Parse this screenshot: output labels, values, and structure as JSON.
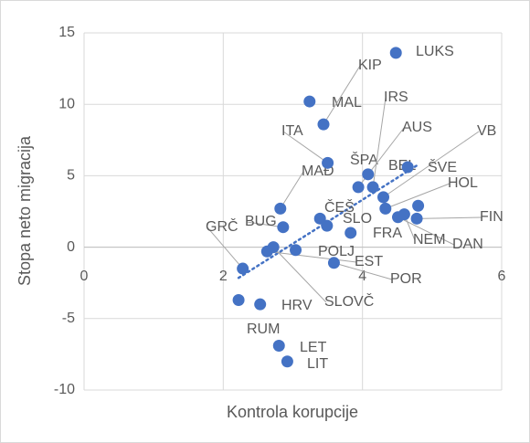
{
  "chart_data": {
    "type": "scatter",
    "xlabel": "Kontrola korupcije",
    "ylabel": "Stopa neto migracija",
    "xlim": [
      0,
      6
    ],
    "xticks": [
      0,
      2,
      4,
      6
    ],
    "ylim": [
      -10,
      15
    ],
    "yticks": [
      -10,
      -5,
      0,
      5,
      10,
      15
    ],
    "grid": true,
    "color": "#4472c4",
    "trendline": true,
    "labels": [
      "LUKS",
      "MAL",
      "KIP",
      "ITA",
      "ŠPA",
      "IRS",
      "AUS",
      "BEL",
      "VB",
      "ŠVE",
      "HOL",
      "FIN",
      "DAN",
      "NEM",
      "FRA",
      "SLO",
      "ČEŠ",
      "MAĐ",
      "BUG",
      "GRČ",
      "POLJ",
      "EST",
      "POR",
      "SLOVČ",
      "HRV",
      "RUM",
      "LET",
      "LIT"
    ],
    "x": [
      4.48,
      3.24,
      3.44,
      3.5,
      4.08,
      4.15,
      3.94,
      4.65,
      4.3,
      4.8,
      4.33,
      4.78,
      4.51,
      4.6,
      3.83,
      3.49,
      3.39,
      2.82,
      2.86,
      2.28,
      3.04,
      2.63,
      3.59,
      2.72,
      2.53,
      2.22,
      2.8,
      2.92
    ],
    "y": [
      13.6,
      10.2,
      8.6,
      5.9,
      5.1,
      4.2,
      4.2,
      5.6,
      3.5,
      2.9,
      2.7,
      2.0,
      2.1,
      2.3,
      1.0,
      1.5,
      2.0,
      2.7,
      1.4,
      -1.5,
      -0.2,
      -0.3,
      -1.1,
      0.0,
      -4.0,
      -3.7,
      -6.9,
      -8.0
    ]
  }
}
